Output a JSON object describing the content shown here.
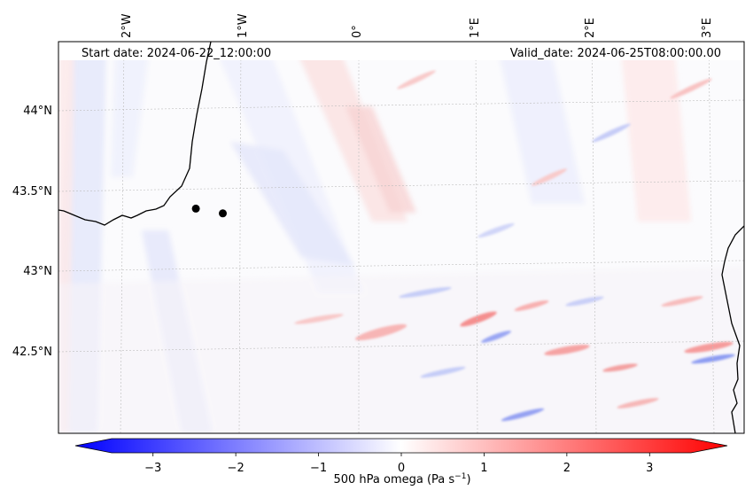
{
  "header": {
    "start_date": "Start date: 2024-06-22_12:00:00",
    "valid_date": "Valid_date: 2024-06-25T08:00:00.00"
  },
  "map": {
    "lon_labels": [
      "2°W",
      "1°W",
      "0°",
      "1°E",
      "2°E",
      "3°E"
    ],
    "lat_labels": [
      "44°N",
      "43.5°N",
      "43°N",
      "42.5°N"
    ],
    "points": [
      {
        "lon": -1.39,
        "lat": 43.39
      },
      {
        "lon": -1.16,
        "lat": 43.36
      }
    ],
    "gridlines": true
  },
  "colorbar": {
    "label": "500 hPa omega (Pa s",
    "label_sup": "−1",
    "label_close": ")",
    "tick_labels": [
      "−3",
      "−2",
      "−1",
      "0",
      "1",
      "2",
      "3"
    ],
    "range": [
      -3.5,
      3.5
    ],
    "colormap": {
      "low": "#0000ff",
      "mid": "#ffffff",
      "high": "#ff0000"
    },
    "extend": "both"
  }
}
